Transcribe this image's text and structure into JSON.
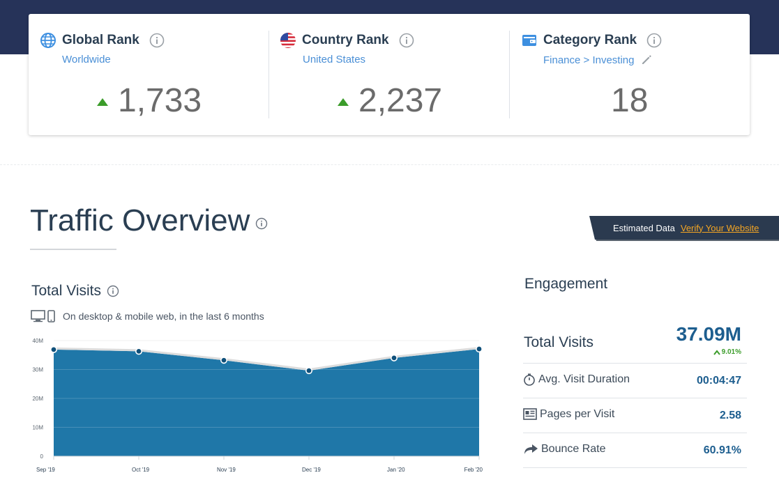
{
  "ranks": [
    {
      "title": "Global Rank",
      "subtitle": "Worldwide",
      "value": "1,733",
      "trend": "up",
      "icon": "globe-icon"
    },
    {
      "title": "Country Rank",
      "subtitle": "United States",
      "value": "2,237",
      "trend": "up",
      "icon": "us-flag-icon"
    },
    {
      "title": "Category Rank",
      "subtitle": "Finance > Investing",
      "value": "18",
      "trend": "none",
      "icon": "wallet-icon"
    }
  ],
  "traffic": {
    "title": "Traffic Overview",
    "estimated_label": "Estimated Data",
    "verify_link": "Verify Your Website"
  },
  "total_visits_chart": {
    "title": "Total Visits",
    "subtitle": "On desktop & mobile web, in the last 6 months"
  },
  "chart_data": {
    "type": "area",
    "title": "",
    "xlabel": "",
    "ylabel": "",
    "categories": [
      "Sep '19",
      "Oct '19",
      "Nov '19",
      "Dec '19",
      "Jan '20",
      "Feb '20"
    ],
    "values": [
      36.9,
      36.3,
      33.2,
      29.6,
      34.0,
      37.09
    ],
    "unit": "M",
    "yticks": [
      "0",
      "10M",
      "20M",
      "30M",
      "40M"
    ],
    "ylim": [
      0,
      40
    ],
    "grid": true,
    "colors": {
      "fill": "#1f77a8",
      "line": "#dcdcdc",
      "point": "#10507a"
    }
  },
  "engagement": {
    "title": "Engagement",
    "total_visits_label": "Total Visits",
    "total_visits_value": "37.09M",
    "total_visits_delta": "9.01%",
    "rows": [
      {
        "label": "Avg. Visit Duration",
        "value": "00:04:47",
        "icon": "stopwatch-icon"
      },
      {
        "label": "Pages per Visit",
        "value": "2.58",
        "icon": "pages-icon"
      },
      {
        "label": "Bounce Rate",
        "value": "60.91%",
        "icon": "bounce-arrow-icon"
      }
    ]
  },
  "colors": {
    "header_band": "#263359",
    "accent_blue": "#1d5e8f",
    "link_blue": "#4a8fd6",
    "up_green": "#3b9c2a",
    "verify_orange": "#f5a623"
  }
}
